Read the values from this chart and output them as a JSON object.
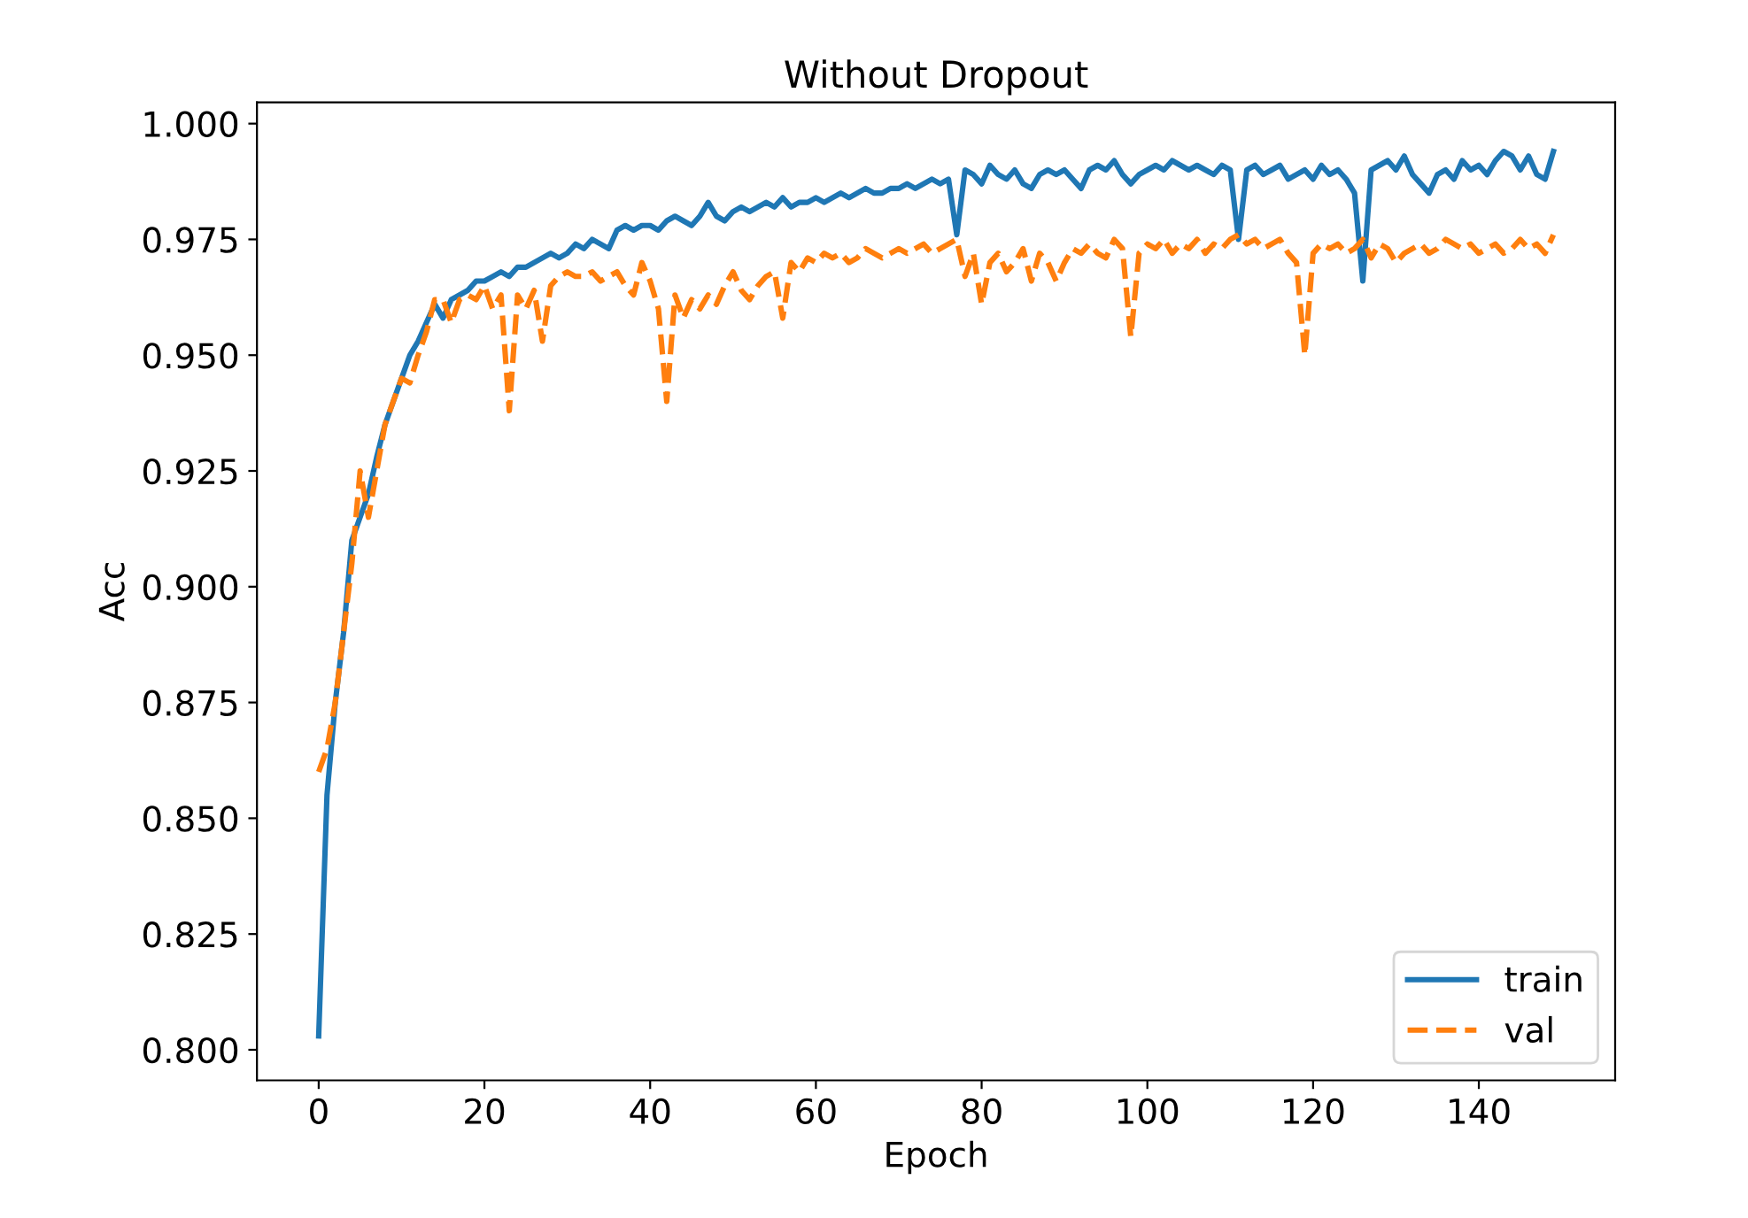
{
  "chart_data": {
    "type": "line",
    "title": "Without Dropout",
    "xlabel": "Epoch",
    "ylabel": "Acc",
    "x": [
      0,
      1,
      2,
      3,
      4,
      5,
      6,
      7,
      8,
      9,
      10,
      11,
      12,
      13,
      14,
      15,
      16,
      17,
      18,
      19,
      20,
      21,
      22,
      23,
      24,
      25,
      26,
      27,
      28,
      29,
      30,
      31,
      32,
      33,
      34,
      35,
      36,
      37,
      38,
      39,
      40,
      41,
      42,
      43,
      44,
      45,
      46,
      47,
      48,
      49,
      50,
      51,
      52,
      53,
      54,
      55,
      56,
      57,
      58,
      59,
      60,
      61,
      62,
      63,
      64,
      65,
      66,
      67,
      68,
      69,
      70,
      71,
      72,
      73,
      74,
      75,
      76,
      77,
      78,
      79,
      80,
      81,
      82,
      83,
      84,
      85,
      86,
      87,
      88,
      89,
      90,
      91,
      92,
      93,
      94,
      95,
      96,
      97,
      98,
      99,
      100,
      101,
      102,
      103,
      104,
      105,
      106,
      107,
      108,
      109,
      110,
      111,
      112,
      113,
      114,
      115,
      116,
      117,
      118,
      119,
      120,
      121,
      122,
      123,
      124,
      125,
      126,
      127,
      128,
      129,
      130,
      131,
      132,
      133,
      134,
      135,
      136,
      137,
      138,
      139,
      140,
      141,
      142,
      143,
      144,
      145,
      146,
      147,
      148,
      149
    ],
    "series": [
      {
        "name": "train",
        "color": "#1f77b4",
        "line_style": "solid",
        "values": [
          0.803,
          0.855,
          0.875,
          0.89,
          0.91,
          0.915,
          0.92,
          0.928,
          0.935,
          0.94,
          0.945,
          0.95,
          0.953,
          0.957,
          0.961,
          0.958,
          0.962,
          0.963,
          0.964,
          0.966,
          0.966,
          0.967,
          0.968,
          0.967,
          0.969,
          0.969,
          0.97,
          0.971,
          0.972,
          0.971,
          0.972,
          0.974,
          0.973,
          0.975,
          0.974,
          0.973,
          0.977,
          0.978,
          0.977,
          0.978,
          0.978,
          0.977,
          0.979,
          0.98,
          0.979,
          0.978,
          0.98,
          0.983,
          0.98,
          0.979,
          0.981,
          0.982,
          0.981,
          0.982,
          0.983,
          0.982,
          0.984,
          0.982,
          0.983,
          0.983,
          0.984,
          0.983,
          0.984,
          0.985,
          0.984,
          0.985,
          0.986,
          0.985,
          0.985,
          0.986,
          0.986,
          0.987,
          0.986,
          0.987,
          0.988,
          0.987,
          0.988,
          0.976,
          0.99,
          0.989,
          0.987,
          0.991,
          0.989,
          0.988,
          0.99,
          0.987,
          0.986,
          0.989,
          0.99,
          0.989,
          0.99,
          0.988,
          0.986,
          0.99,
          0.991,
          0.99,
          0.992,
          0.989,
          0.987,
          0.989,
          0.99,
          0.991,
          0.99,
          0.992,
          0.991,
          0.99,
          0.991,
          0.99,
          0.989,
          0.991,
          0.99,
          0.975,
          0.99,
          0.991,
          0.989,
          0.99,
          0.991,
          0.988,
          0.989,
          0.99,
          0.988,
          0.991,
          0.989,
          0.99,
          0.988,
          0.985,
          0.966,
          0.99,
          0.991,
          0.992,
          0.99,
          0.993,
          0.989,
          0.987,
          0.985,
          0.989,
          0.99,
          0.988,
          0.992,
          0.99,
          0.991,
          0.989,
          0.992,
          0.994,
          0.993,
          0.99,
          0.993,
          0.989,
          0.988,
          0.994
        ]
      },
      {
        "name": "val",
        "color": "#ff7f0e",
        "line_style": "dashed",
        "values": [
          0.86,
          0.865,
          0.875,
          0.89,
          0.905,
          0.925,
          0.915,
          0.925,
          0.935,
          0.94,
          0.945,
          0.944,
          0.95,
          0.955,
          0.962,
          0.962,
          0.957,
          0.962,
          0.963,
          0.962,
          0.965,
          0.96,
          0.963,
          0.938,
          0.963,
          0.96,
          0.964,
          0.953,
          0.965,
          0.967,
          0.968,
          0.967,
          0.967,
          0.968,
          0.966,
          0.967,
          0.968,
          0.965,
          0.963,
          0.97,
          0.966,
          0.96,
          0.94,
          0.963,
          0.958,
          0.962,
          0.96,
          0.963,
          0.961,
          0.965,
          0.968,
          0.964,
          0.962,
          0.965,
          0.967,
          0.968,
          0.958,
          0.97,
          0.968,
          0.971,
          0.97,
          0.972,
          0.971,
          0.972,
          0.97,
          0.971,
          0.973,
          0.972,
          0.971,
          0.972,
          0.973,
          0.972,
          0.973,
          0.974,
          0.972,
          0.973,
          0.974,
          0.975,
          0.967,
          0.972,
          0.961,
          0.97,
          0.972,
          0.968,
          0.97,
          0.973,
          0.966,
          0.972,
          0.97,
          0.966,
          0.97,
          0.973,
          0.972,
          0.974,
          0.972,
          0.971,
          0.975,
          0.973,
          0.954,
          0.972,
          0.974,
          0.973,
          0.975,
          0.972,
          0.974,
          0.973,
          0.975,
          0.972,
          0.974,
          0.973,
          0.975,
          0.976,
          0.974,
          0.975,
          0.973,
          0.974,
          0.975,
          0.972,
          0.97,
          0.95,
          0.972,
          0.974,
          0.973,
          0.974,
          0.972,
          0.973,
          0.975,
          0.971,
          0.974,
          0.973,
          0.97,
          0.972,
          0.973,
          0.974,
          0.972,
          0.973,
          0.975,
          0.974,
          0.973,
          0.974,
          0.972,
          0.973,
          0.974,
          0.972,
          0.973,
          0.975,
          0.973,
          0.974,
          0.972,
          0.976
        ]
      }
    ],
    "xlim": [
      -7.45,
      156.45
    ],
    "ylim": [
      0.7934,
      1.0046
    ],
    "xticks": [
      0,
      20,
      40,
      60,
      80,
      100,
      120,
      140
    ],
    "yticks": [
      {
        "value": 0.8,
        "label": "0.800"
      },
      {
        "value": 0.825,
        "label": "0.825"
      },
      {
        "value": 0.85,
        "label": "0.850"
      },
      {
        "value": 0.875,
        "label": "0.875"
      },
      {
        "value": 0.9,
        "label": "0.900"
      },
      {
        "value": 0.925,
        "label": "0.925"
      },
      {
        "value": 0.95,
        "label": "0.950"
      },
      {
        "value": 0.975,
        "label": "0.975"
      },
      {
        "value": 1.0,
        "label": "1.000"
      }
    ],
    "grid": false,
    "legend": "lower right",
    "marker": "none"
  }
}
